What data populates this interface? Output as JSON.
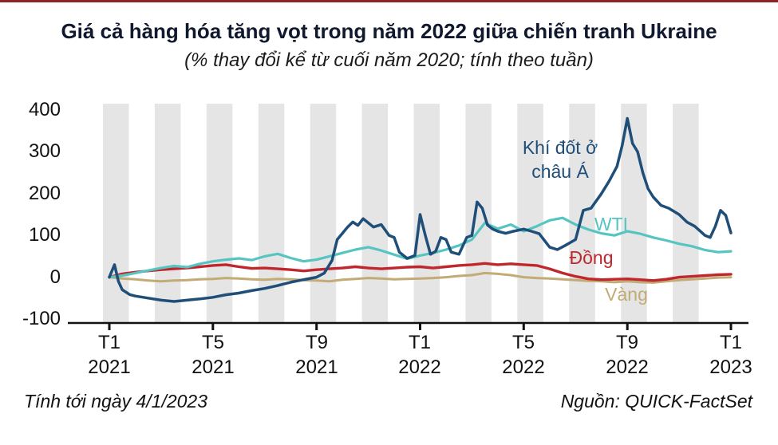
{
  "title": "Giá cả hàng hóa tăng vọt trong năm 2022 giữa chiến tranh Ukraine",
  "subtitle": "(% thay đổi kể từ cuối năm 2020; tính theo tuần)",
  "footer": {
    "left": "Tính tới ngày 4/1/2023",
    "right": "Nguồn: QUICK-FactSet"
  },
  "chart_data": {
    "type": "line",
    "title": "Giá cả hàng hóa tăng vọt trong năm 2022 giữa chiến tranh Ukraine",
    "subtitle": "(% thay đổi kể từ cuối năm 2020; tính theo tuần)",
    "x_unit": "months since Jan 2021 (weekly data)",
    "x_range": [
      0,
      24
    ],
    "ylim": [
      -100,
      400
    ],
    "grid": "off",
    "legend": "inline-annotations",
    "yticks": [
      400,
      300,
      200,
      100,
      0,
      -100
    ],
    "xticks": [
      {
        "month": 0,
        "line1": "T1",
        "line2": "2021"
      },
      {
        "month": 4,
        "line1": "T5",
        "line2": "2021"
      },
      {
        "month": 8,
        "line1": "T9",
        "line2": "2021"
      },
      {
        "month": 12,
        "line1": "T1",
        "line2": "2022"
      },
      {
        "month": 16,
        "line1": "T5",
        "line2": "2022"
      },
      {
        "month": 20,
        "line1": "T9",
        "line2": "2022"
      },
      {
        "month": 24,
        "line1": "T1",
        "line2": "2023"
      }
    ],
    "background_stripes": {
      "color": "#e5e5e5",
      "start_month": 0,
      "last_month": 22,
      "period_months": 2,
      "width_months": 1
    },
    "x_common": [
      0,
      0.5,
      1,
      1.5,
      2,
      2.5,
      3,
      3.5,
      4,
      4.5,
      5,
      5.5,
      6,
      6.5,
      7,
      7.5,
      8,
      8.5,
      9,
      9.5,
      10,
      10.5,
      11,
      11.5,
      12,
      12.5,
      13,
      13.5,
      14,
      14.5,
      15,
      15.5,
      16,
      16.5,
      17,
      17.5,
      18,
      18.5,
      19,
      19.5,
      20,
      20.5,
      21,
      21.5,
      22,
      22.5,
      23,
      23.5,
      24
    ],
    "series": [
      {
        "id": "gas-asia",
        "name": "Khí đốt ở châu Á",
        "label_line1": "Khí đốt ở",
        "label_line2": "châu Á",
        "color": "#1f4e79",
        "x": [
          0,
          0.2,
          0.35,
          0.5,
          0.8,
          1,
          1.5,
          2,
          2.5,
          3,
          3.5,
          4,
          4.5,
          5,
          5.5,
          6,
          6.5,
          7,
          7.5,
          8,
          8.3,
          8.6,
          8.8,
          9,
          9.2,
          9.4,
          9.6,
          9.8,
          10,
          10.2,
          10.5,
          10.8,
          11,
          11.2,
          11.5,
          11.8,
          12,
          12.2,
          12.4,
          12.6,
          12.8,
          13,
          13.2,
          13.5,
          13.8,
          14,
          14.2,
          14.4,
          14.6,
          14.8,
          15,
          15.3,
          15.6,
          16,
          16.3,
          16.6,
          17,
          17.3,
          17.6,
          18,
          18.3,
          18.6,
          19,
          19.3,
          19.6,
          19.8,
          20,
          20.2,
          20.4,
          20.6,
          20.8,
          21,
          21.3,
          21.6,
          22,
          22.3,
          22.6,
          23,
          23.2,
          23.4,
          23.6,
          23.8,
          24
        ],
        "values": [
          0,
          30,
          -10,
          -30,
          -42,
          -45,
          -50,
          -55,
          -58,
          -55,
          -52,
          -48,
          -42,
          -38,
          -32,
          -27,
          -20,
          -12,
          -6,
          0,
          10,
          40,
          90,
          105,
          120,
          132,
          124,
          140,
          130,
          120,
          126,
          100,
          95,
          60,
          45,
          52,
          150,
          100,
          55,
          62,
          95,
          90,
          60,
          55,
          95,
          100,
          180,
          165,
          125,
          115,
          110,
          105,
          110,
          115,
          110,
          104,
          72,
          66,
          76,
          90,
          160,
          165,
          200,
          230,
          265,
          315,
          380,
          320,
          300,
          250,
          212,
          192,
          172,
          165,
          150,
          132,
          122,
          100,
          95,
          122,
          160,
          148,
          106
        ]
      },
      {
        "id": "wti",
        "name": "WTI",
        "color": "#56c5c1",
        "values": [
          0,
          4,
          10,
          16,
          22,
          27,
          24,
          32,
          38,
          42,
          45,
          41,
          50,
          56,
          46,
          38,
          42,
          50,
          58,
          66,
          72,
          64,
          54,
          44,
          52,
          58,
          66,
          76,
          90,
          130,
          116,
          126,
          110,
          122,
          136,
          142,
          126,
          114,
          105,
          100,
          110,
          104,
          95,
          88,
          80,
          74,
          65,
          60,
          62
        ]
      },
      {
        "id": "copper",
        "name": "Đồng",
        "color": "#c0272d",
        "values": [
          0,
          8,
          12,
          15,
          18,
          20,
          22,
          25,
          28,
          30,
          25,
          21,
          22,
          20,
          18,
          15,
          18,
          20,
          22,
          25,
          22,
          20,
          22,
          24,
          25,
          22,
          25,
          28,
          30,
          33,
          30,
          32,
          30,
          28,
          20,
          10,
          2,
          -4,
          -6,
          -5,
          -4,
          -6,
          -8,
          -5,
          0,
          2,
          4,
          6,
          7
        ]
      },
      {
        "id": "gold",
        "name": "Vàng",
        "color": "#c2ab74",
        "values": [
          0,
          -3,
          -5,
          -8,
          -10,
          -8,
          -7,
          -5,
          -4,
          -2,
          -3,
          -5,
          -6,
          -4,
          -5,
          -7,
          -8,
          -10,
          -6,
          -4,
          -2,
          -3,
          -5,
          -4,
          -3,
          -2,
          0,
          3,
          5,
          10,
          8,
          5,
          0,
          -2,
          -3,
          -5,
          -7,
          -9,
          -10,
          -12,
          -10,
          -12,
          -13,
          -10,
          -7,
          -5,
          -3,
          -1,
          0
        ]
      }
    ]
  }
}
